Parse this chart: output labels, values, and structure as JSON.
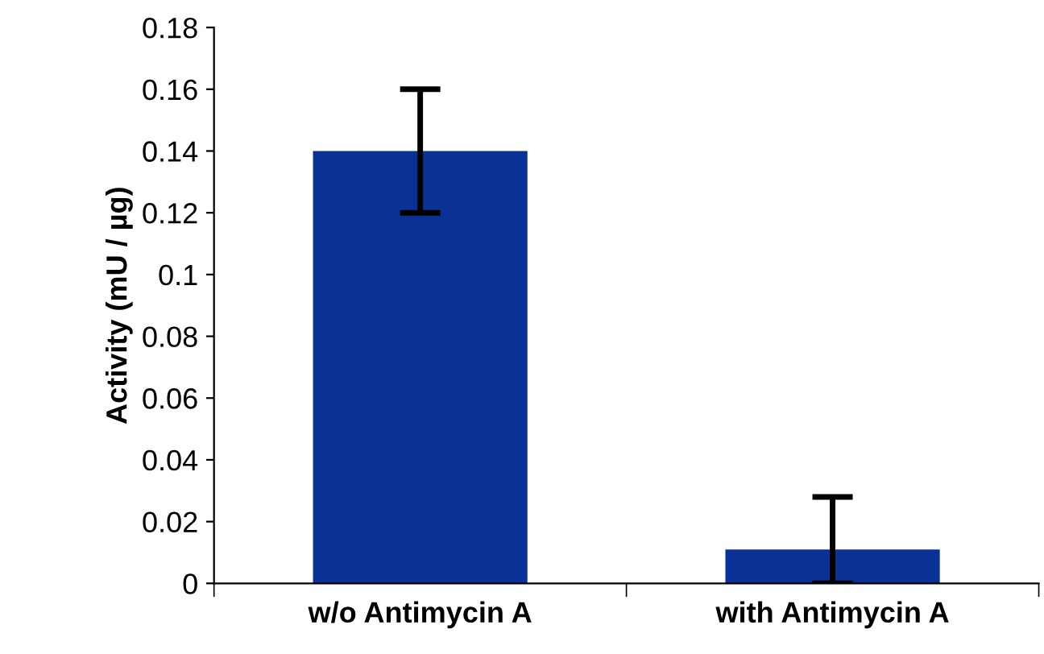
{
  "chart_data": {
    "type": "bar",
    "ylabel": "Activity (mU / µg)",
    "categories": [
      "w/o Antimycin A",
      "with Antimycin A"
    ],
    "values": [
      0.14,
      0.011
    ],
    "errors": [
      0.02,
      [
        0,
        0.028
      ]
    ],
    "color": "#0a3296",
    "ylim": [
      0,
      0.18
    ],
    "yticks": [
      0,
      0.02,
      0.04,
      0.06,
      0.08,
      0.1,
      0.12,
      0.14,
      0.16,
      0.18
    ],
    "grid": false
  }
}
